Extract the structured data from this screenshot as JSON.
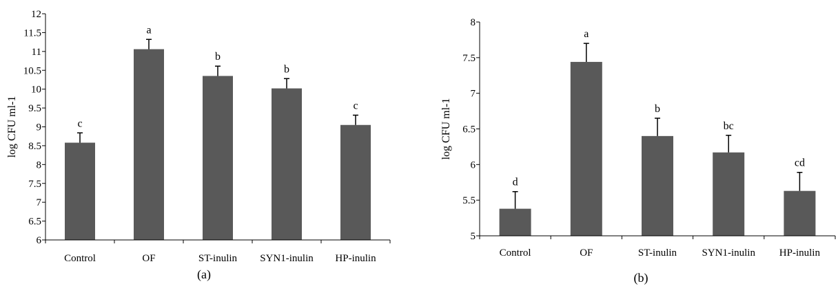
{
  "chart_data": [
    {
      "type": "bar",
      "panel_label": "(a)",
      "ylabel": "log CFU ml-1",
      "ylim": [
        6,
        12
      ],
      "yticks": [
        "6",
        "6.5",
        "7",
        "7.5",
        "8",
        "8.5",
        "9",
        "9.5",
        "10",
        "10.5",
        "11",
        "11.5",
        "12"
      ],
      "categories": [
        "Control",
        "OF",
        "ST-inulin",
        "SYN1-inulin",
        "HP-inulin"
      ],
      "values": [
        8.58,
        11.06,
        10.35,
        10.02,
        9.05
      ],
      "errors": [
        0.26,
        0.26,
        0.26,
        0.26,
        0.26
      ],
      "significance": [
        "c",
        "a",
        "b",
        "b",
        "c"
      ],
      "bar_color": "#595959"
    },
    {
      "type": "bar",
      "panel_label": "(b)",
      "ylabel": "log CFU ml-1",
      "ylim": [
        5,
        8
      ],
      "yticks": [
        "5",
        "5.5",
        "6",
        "6.5",
        "7",
        "7.5",
        "8"
      ],
      "categories": [
        "Control",
        "OF",
        "ST-inulin",
        "SYN1-inulin",
        "HP-inulin"
      ],
      "values": [
        5.38,
        7.44,
        6.4,
        6.17,
        5.63
      ],
      "errors": [
        0.24,
        0.26,
        0.25,
        0.24,
        0.26
      ],
      "significance": [
        "d",
        "a",
        "b",
        "bc",
        "cd"
      ],
      "bar_color": "#595959"
    }
  ]
}
